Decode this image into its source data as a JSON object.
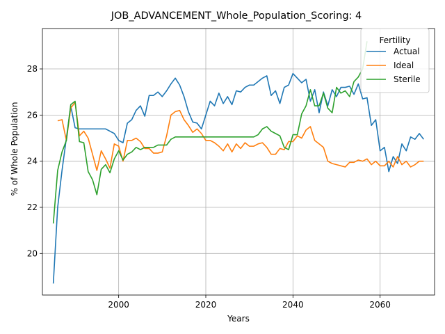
{
  "chart_data": {
    "type": "line",
    "title": "JOB_ADVANCEMENT_Whole_Population_Scoring: 4",
    "xlabel": "Years",
    "ylabel": "% of Whole Population",
    "xlim": [
      1982.5,
      2072.5
    ],
    "ylim": [
      18.2,
      29.75
    ],
    "xticks": [
      2000,
      2020,
      2040,
      2060
    ],
    "yticks": [
      20,
      22,
      24,
      26,
      28
    ],
    "grid": true,
    "legend": {
      "title": "Fertility",
      "position": "top-right"
    },
    "series": [
      {
        "name": "Actual",
        "color": "#1f77b4",
        "x": [
          1985,
          1986,
          1987,
          1988,
          1989,
          1990,
          1991,
          1992,
          1993,
          1994,
          1995,
          1996,
          1997,
          1998,
          1999,
          2000,
          2001,
          2002,
          2003,
          2004,
          2005,
          2006,
          2007,
          2008,
          2009,
          2010,
          2011,
          2012,
          2013,
          2014,
          2015,
          2016,
          2017,
          2018,
          2019,
          2020,
          2021,
          2022,
          2023,
          2024,
          2025,
          2026,
          2027,
          2028,
          2029,
          2030,
          2031,
          2032,
          2033,
          2034,
          2035,
          2036,
          2037,
          2038,
          2039,
          2040,
          2041,
          2042,
          2043,
          2044,
          2045,
          2046,
          2047,
          2048,
          2049,
          2050,
          2051,
          2052,
          2053,
          2054,
          2055,
          2056,
          2057,
          2058,
          2059,
          2060,
          2061,
          2062,
          2063,
          2064,
          2065,
          2066,
          2067,
          2068,
          2069,
          2070
        ],
        "values": [
          18.7,
          22.0,
          23.6,
          25.0,
          26.4,
          25.45,
          25.4,
          25.4,
          25.4,
          25.4,
          25.4,
          25.4,
          25.4,
          25.3,
          25.2,
          24.9,
          24.8,
          25.65,
          25.8,
          26.2,
          26.4,
          25.95,
          26.85,
          26.85,
          27.0,
          26.8,
          27.05,
          27.35,
          27.6,
          27.3,
          26.8,
          26.15,
          25.7,
          25.65,
          25.4,
          26.0,
          26.6,
          26.4,
          26.95,
          26.5,
          26.8,
          26.45,
          27.05,
          27.0,
          27.2,
          27.3,
          27.3,
          27.45,
          27.6,
          27.7,
          26.85,
          27.05,
          26.5,
          27.2,
          27.3,
          27.8,
          27.6,
          27.4,
          27.55,
          26.6,
          27.1,
          26.1,
          27.0,
          26.4,
          27.1,
          26.8,
          27.2,
          27.2,
          27.25,
          26.9,
          27.35,
          26.7,
          26.75,
          25.55,
          25.8,
          24.45,
          24.6,
          23.55,
          24.2,
          23.9,
          24.75,
          24.45,
          25.05,
          24.95,
          25.2,
          24.95
        ]
      },
      {
        "name": "Ideal",
        "color": "#ff7f0e",
        "x": [
          1985,
          1986,
          1987,
          1988,
          1989,
          1990,
          1991,
          1992,
          1993,
          1994,
          1995,
          1996,
          1997,
          1998,
          1999,
          2000,
          2001,
          2002,
          2003,
          2004,
          2005,
          2006,
          2007,
          2008,
          2009,
          2010,
          2011,
          2012,
          2013,
          2014,
          2015,
          2016,
          2017,
          2018,
          2019,
          2020,
          2021,
          2022,
          2023,
          2024,
          2025,
          2026,
          2027,
          2028,
          2029,
          2030,
          2031,
          2032,
          2033,
          2034,
          2035,
          2036,
          2037,
          2038,
          2039,
          2040,
          2041,
          2042,
          2043,
          2044,
          2045,
          2046,
          2047,
          2048,
          2049,
          2050,
          2051,
          2052,
          2053,
          2054,
          2055,
          2056,
          2057,
          2058,
          2059,
          2060,
          2061,
          2062,
          2063,
          2064,
          2065,
          2066,
          2067,
          2068,
          2069,
          2070
        ],
        "values": [
          null,
          25.75,
          25.8,
          24.9,
          26.3,
          26.55,
          25.1,
          25.3,
          25.0,
          24.3,
          23.6,
          24.45,
          24.1,
          23.7,
          24.75,
          24.65,
          24.0,
          24.9,
          24.9,
          25.0,
          24.85,
          24.55,
          24.55,
          24.35,
          24.35,
          24.4,
          25.1,
          26.0,
          26.15,
          26.2,
          25.8,
          25.55,
          25.25,
          25.4,
          25.2,
          24.9,
          24.9,
          24.8,
          24.65,
          24.45,
          24.75,
          24.4,
          24.75,
          24.55,
          24.8,
          24.65,
          24.65,
          24.75,
          24.8,
          24.6,
          24.3,
          24.3,
          24.55,
          24.5,
          24.85,
          24.85,
          25.1,
          25.0,
          25.35,
          25.5,
          24.9,
          24.75,
          24.6,
          24.0,
          23.9,
          23.85,
          23.8,
          23.75,
          23.95,
          23.95,
          24.05,
          24.0,
          24.1,
          23.85,
          24.0,
          23.8,
          23.8,
          24.0,
          23.75,
          24.2,
          23.85,
          24.0,
          23.75,
          23.85,
          24.0,
          24.0
        ]
      },
      {
        "name": "Sterile",
        "color": "#2ca02c",
        "x": [
          1985,
          1986,
          1987,
          1988,
          1989,
          1990,
          1991,
          1992,
          1993,
          1994,
          1995,
          1996,
          1997,
          1998,
          1999,
          2000,
          2001,
          2002,
          2003,
          2004,
          2005,
          2006,
          2007,
          2008,
          2009,
          2010,
          2011,
          2012,
          2013,
          2014,
          2015,
          2016,
          2017,
          2018,
          2019,
          2020,
          2021,
          2022,
          2023,
          2024,
          2025,
          2026,
          2027,
          2028,
          2029,
          2030,
          2031,
          2032,
          2033,
          2034,
          2035,
          2036,
          2037,
          2038,
          2039,
          2040,
          2041,
          2042,
          2043,
          2044,
          2045,
          2046,
          2047,
          2048,
          2049,
          2050,
          2051,
          2052,
          2053,
          2054,
          2055,
          2056,
          2057
        ],
        "values": [
          21.3,
          23.6,
          24.4,
          24.9,
          26.45,
          26.6,
          24.85,
          24.8,
          23.55,
          23.2,
          22.55,
          23.65,
          23.85,
          23.5,
          24.1,
          24.45,
          24.05,
          24.3,
          24.4,
          24.6,
          24.5,
          24.6,
          24.6,
          24.6,
          24.7,
          24.7,
          24.7,
          24.95,
          25.05,
          25.05,
          25.05,
          25.05,
          25.05,
          25.05,
          25.05,
          25.05,
          25.05,
          25.05,
          25.05,
          25.05,
          25.05,
          25.05,
          25.05,
          25.05,
          25.05,
          25.05,
          25.05,
          25.15,
          25.4,
          25.5,
          25.3,
          25.2,
          25.1,
          24.6,
          24.5,
          25.15,
          25.15,
          26.05,
          26.4,
          27.1,
          26.4,
          26.4,
          26.95,
          26.3,
          26.1,
          27.2,
          26.95,
          27.05,
          26.8,
          27.45,
          27.65,
          28.0,
          29.2
        ]
      }
    ]
  }
}
